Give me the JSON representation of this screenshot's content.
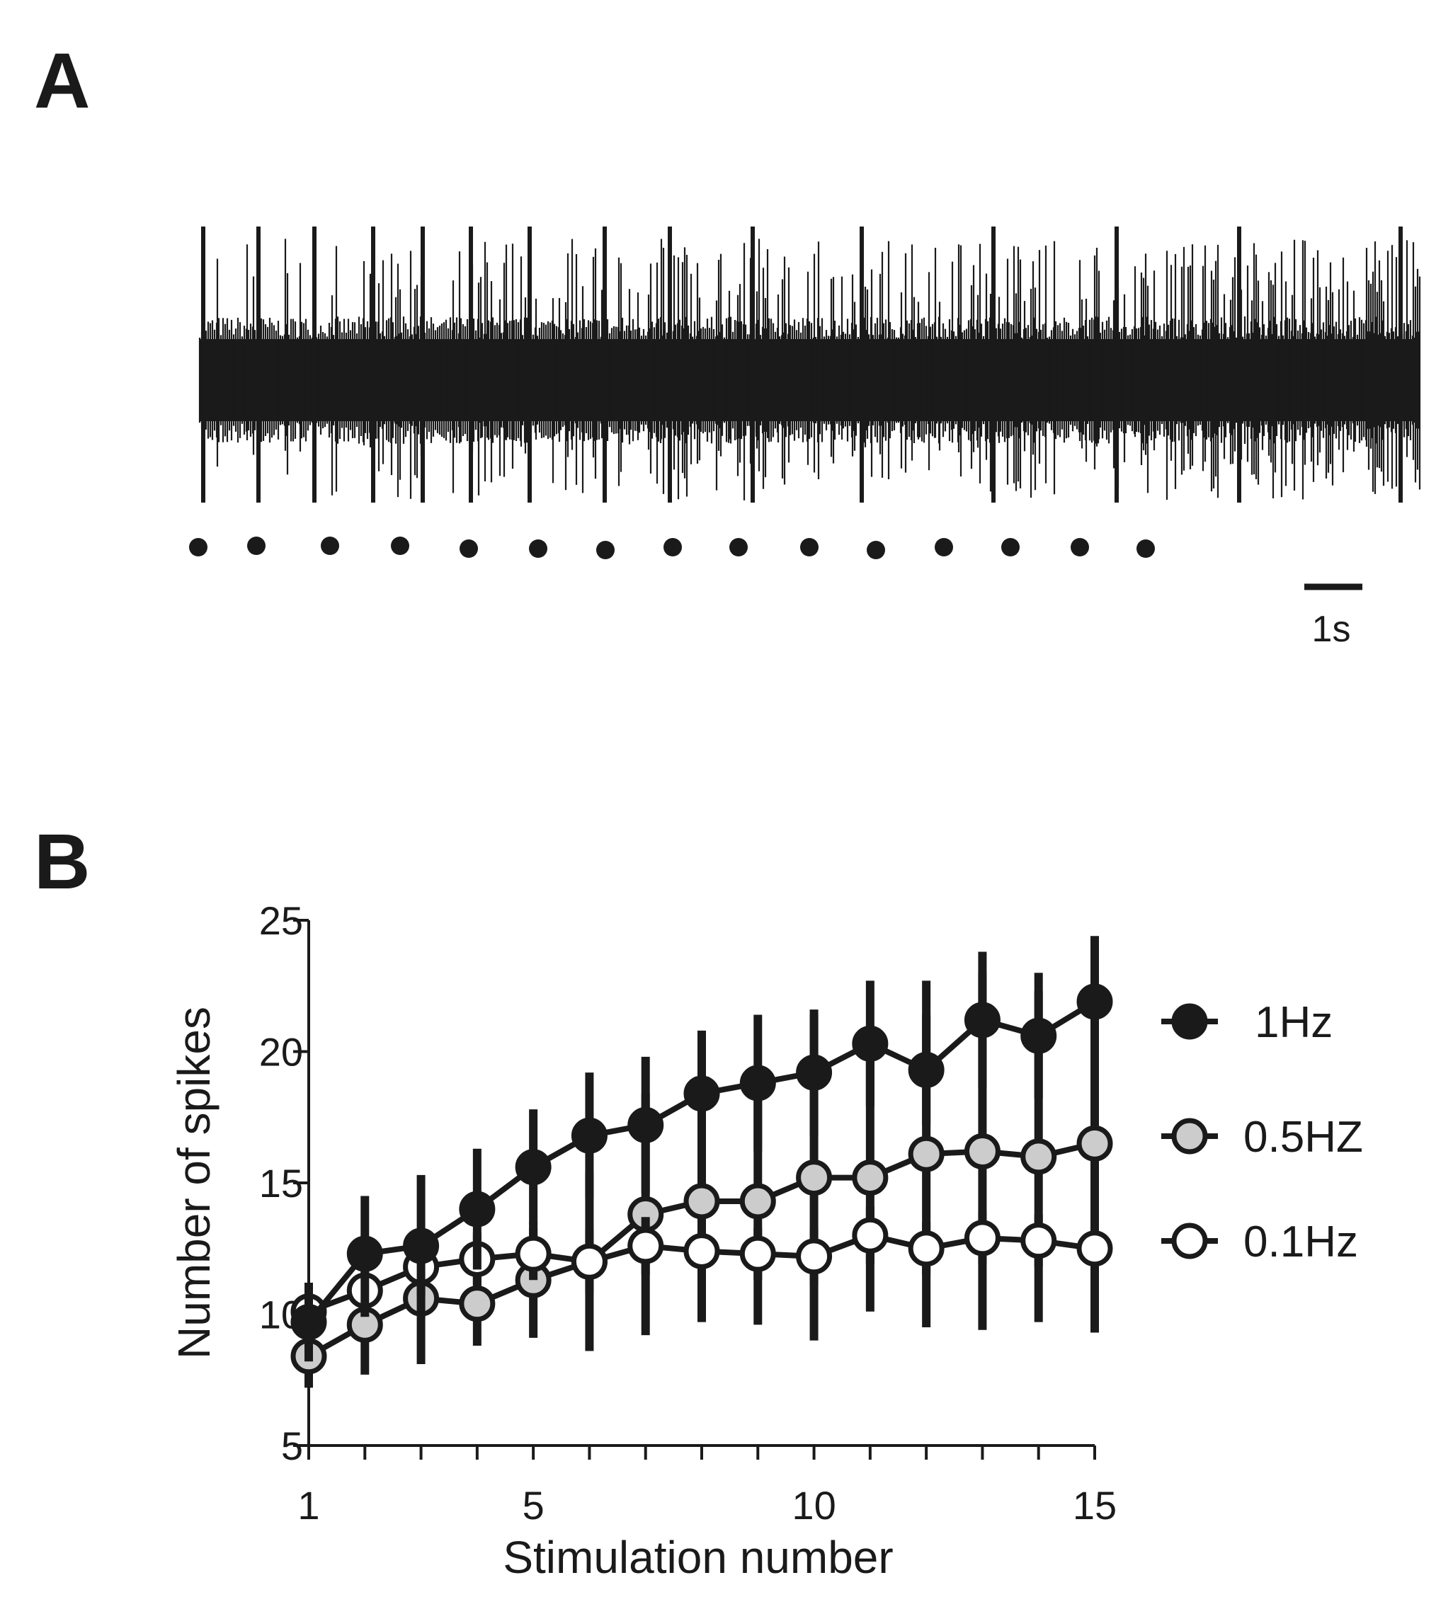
{
  "panels": {
    "a_label": "A",
    "b_label": "B"
  },
  "trace": {
    "stimulus_count": 15,
    "scale_bar_label": "1s"
  },
  "chart_data": {
    "type": "line",
    "title": "",
    "xlabel": "Stimulation number",
    "ylabel": "Number of spikes",
    "x": [
      1,
      2,
      3,
      4,
      5,
      6,
      7,
      8,
      9,
      10,
      11,
      12,
      13,
      14,
      15
    ],
    "xlim": [
      1,
      15
    ],
    "ylim": [
      5,
      25
    ],
    "xticks": [
      1,
      5,
      10,
      15
    ],
    "yticks": [
      5,
      10,
      15,
      20,
      25
    ],
    "grid": false,
    "legend_position": "right",
    "series": [
      {
        "name": "1Hz",
        "fill": "#1a1a1a",
        "values": [
          9.7,
          12.3,
          12.6,
          14.0,
          15.6,
          16.8,
          17.2,
          18.4,
          18.8,
          19.2,
          20.3,
          19.3,
          21.2,
          20.6,
          21.9
        ],
        "err": [
          1.5,
          2.2,
          2.7,
          2.3,
          2.2,
          2.4,
          2.6,
          2.4,
          2.6,
          2.4,
          2.4,
          2.1,
          2.6,
          2.4,
          2.5
        ]
      },
      {
        "name": "0.5HZ",
        "fill": "#cccccc",
        "values": [
          8.4,
          9.6,
          10.6,
          10.4,
          11.3,
          12.0,
          13.8,
          14.3,
          14.3,
          15.2,
          15.2,
          16.1,
          16.2,
          16.0,
          16.5
        ],
        "err": [
          1.2,
          1.9,
          2.5,
          1.6,
          2.2,
          3.4,
          4.6,
          4.6,
          4.7,
          6.2,
          5.1,
          6.6,
          6.8,
          6.3,
          7.2
        ]
      },
      {
        "name": "0.1Hz",
        "fill": "#ffffff",
        "values": [
          10.1,
          10.9,
          11.8,
          12.1,
          12.3,
          12.0,
          12.6,
          12.4,
          12.3,
          12.2,
          13.0,
          12.5,
          12.9,
          12.8,
          12.5
        ],
        "err": [
          0.8,
          1.0,
          1.1,
          1.0,
          1.0,
          1.2,
          1.1,
          1.0,
          1.0,
          1.1,
          1.1,
          1.0,
          1.0,
          1.0,
          1.0
        ]
      }
    ]
  }
}
